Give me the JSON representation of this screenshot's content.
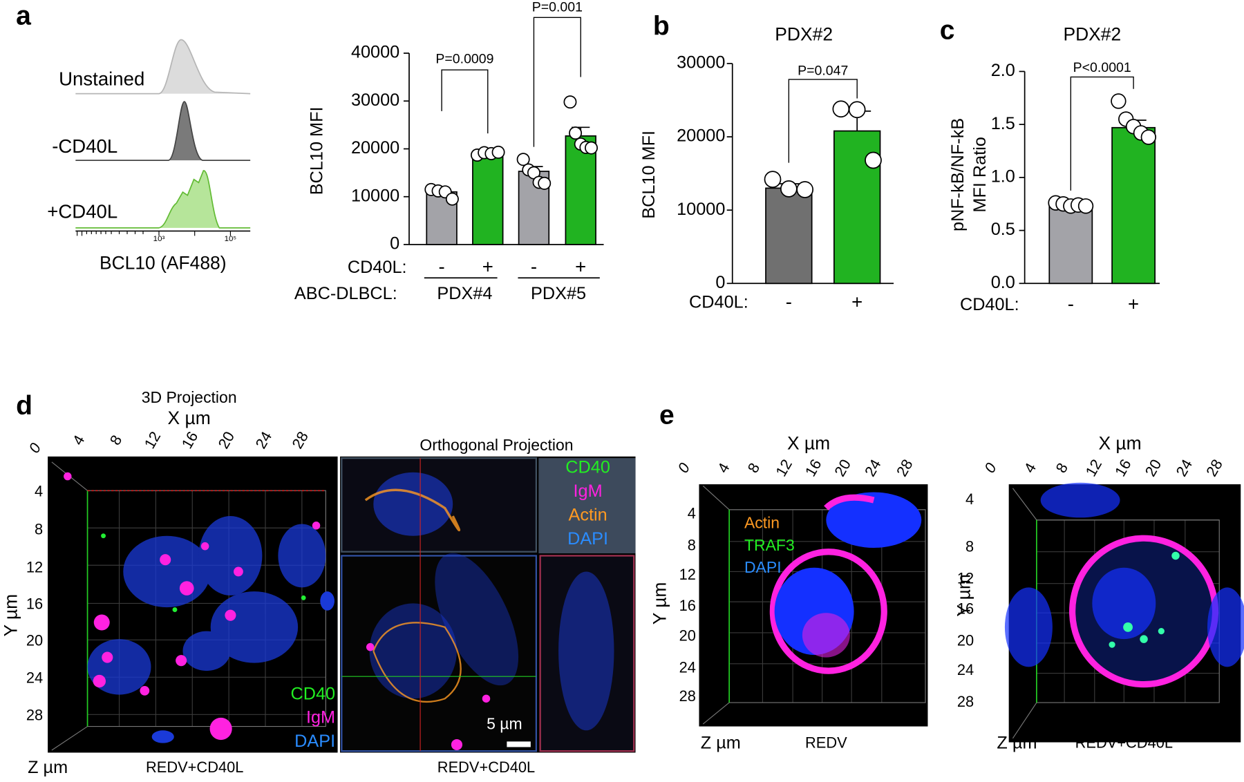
{
  "panel_labels": [
    "a",
    "b",
    "c",
    "d",
    "e"
  ],
  "histogram": {
    "rows": [
      "Unstained",
      "-CD40L",
      "+CD40L"
    ],
    "ticks": [
      "10³",
      "10⁵"
    ],
    "xlabel": "BCL10 (AF488)"
  },
  "chart_data": [
    {
      "type": "bar",
      "ylabel": "BCL10  MFI",
      "categories": [
        "-",
        "+",
        "-",
        "+"
      ],
      "x_label": "CD40L:",
      "group_label": "ABC-DLBCL:",
      "groups": [
        "PDX#4",
        "PDX#5"
      ],
      "values": [
        11000,
        18800,
        15300,
        22700
      ],
      "errors": [
        500,
        300,
        1000,
        1800
      ],
      "points": [
        [
          11500,
          11200,
          11000,
          9500
        ],
        [
          18700,
          19200,
          19000,
          19300
        ],
        [
          17800,
          15600,
          15000,
          13000,
          12800
        ],
        [
          29800,
          23300,
          21000,
          20300,
          20200
        ]
      ],
      "colors": [
        "#a3a3a8",
        "#21b321",
        "#a3a3a8",
        "#21b321"
      ],
      "ylim": [
        0,
        40000
      ],
      "yticks": [
        0,
        10000,
        20000,
        30000,
        40000
      ],
      "annotations": [
        "P=0.0009",
        "P=0.001"
      ]
    },
    {
      "type": "bar",
      "title": "PDX#2",
      "ylabel": "BCL10 MFI",
      "categories": [
        "-",
        "+"
      ],
      "x_label": "CD40L:",
      "values": [
        13000,
        20800
      ],
      "errors": [
        600,
        2700
      ],
      "points": [
        [
          14200,
          12900,
          12800
        ],
        [
          23800,
          23700,
          16800
        ]
      ],
      "colors": [
        "#707070",
        "#21b321"
      ],
      "ylim": [
        0,
        30000
      ],
      "yticks": [
        0,
        10000,
        20000,
        30000
      ],
      "annotations": [
        "P=0.047"
      ]
    },
    {
      "type": "bar",
      "title": "PDX#2",
      "ylabel": [
        "pNF-kB/NF-kB",
        "MFI Ratio"
      ],
      "categories": [
        "-",
        "+"
      ],
      "x_label": "CD40L:",
      "values": [
        0.74,
        1.47
      ],
      "errors": [
        0.02,
        0.07
      ],
      "points": [
        [
          0.76,
          0.75,
          0.73,
          0.74,
          0.73
        ],
        [
          1.72,
          1.55,
          1.48,
          1.42,
          1.38
        ]
      ],
      "colors": [
        "#a3a3a8",
        "#21b321"
      ],
      "ylim": [
        0,
        2
      ],
      "yticks": [
        {
          "value": 0,
          "label": "0.0"
        },
        0.5,
        {
          "value": 1,
          "label": "1.0"
        },
        1.5,
        {
          "value": 2,
          "label": "2.0"
        }
      ],
      "annotations": [
        "P<0.0001"
      ]
    }
  ],
  "panel_d": {
    "title": "3D Projection",
    "x_axis": "X µm",
    "y_axis": "Y µm",
    "z_axis": "Z µm",
    "x_ticks": [
      0,
      4,
      8,
      12,
      16,
      20,
      24,
      28
    ],
    "y_ticks": [
      4,
      8,
      12,
      16,
      20,
      24,
      28
    ],
    "legend": [
      "CD40",
      "IgM",
      "DAPI"
    ],
    "caption": "REDV+CD40L",
    "ortho_title": "Orthogonal Projection",
    "ortho_legend": [
      "CD40",
      "IgM",
      "Actin",
      "DAPI"
    ],
    "scale_bar": "5 µm",
    "ortho_caption": "REDV+CD40L"
  },
  "panel_e": [
    {
      "x_axis": "X µm",
      "y_axis": "Y µm",
      "z_axis": "Z µm",
      "x_ticks": [
        0,
        4,
        8,
        12,
        16,
        20,
        24,
        28
      ],
      "y_ticks": [
        4,
        8,
        12,
        16,
        20,
        24,
        28
      ],
      "legend": [
        "Actin",
        "TRAF3",
        "DAPI"
      ],
      "caption": "REDV"
    },
    {
      "x_axis": "X µm",
      "y_axis": "Y µm",
      "z_axis": "Z µm",
      "x_ticks": [
        0,
        4,
        8,
        12,
        16,
        20,
        24,
        28
      ],
      "y_ticks": [
        4,
        8,
        12,
        16,
        20,
        24,
        28
      ],
      "caption": "REDV+CD40L"
    }
  ]
}
